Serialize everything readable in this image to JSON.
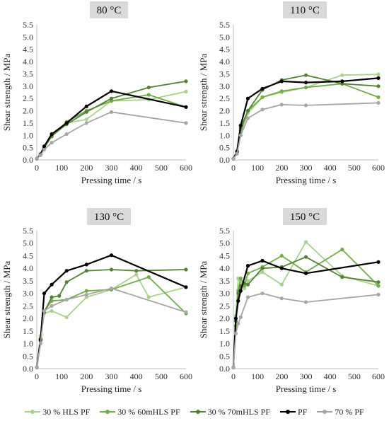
{
  "chart_data": [
    {
      "type": "line",
      "title": "80 °C",
      "xlabel": "Pressing time / s",
      "ylabel": "Shear strength / MPa",
      "xlim": [
        0,
        600
      ],
      "ylim": [
        0,
        5.5
      ],
      "xticks": [
        "0",
        "100",
        "200",
        "300",
        "400",
        "500",
        "600"
      ],
      "yticks": [
        "0.0",
        "0.5",
        "1.0",
        "1.5",
        "2.0",
        "2.5",
        "3.0",
        "3.5",
        "4.0",
        "4.5",
        "5.0",
        "5.5"
      ],
      "series": [
        {
          "name": "30 % HLS PF",
          "x": [
            0,
            15,
            30,
            60,
            120,
            200,
            300,
            450,
            600
          ],
          "y": [
            0.05,
            0.2,
            0.5,
            0.95,
            1.5,
            1.65,
            2.4,
            2.45,
            2.78
          ]
        },
        {
          "name": "30 % 60mHLS PF",
          "x": [
            0,
            15,
            30,
            60,
            120,
            200,
            300,
            450,
            600
          ],
          "y": [
            0.05,
            0.25,
            0.55,
            0.95,
            1.55,
            2.0,
            2.4,
            2.65,
            2.15
          ]
        },
        {
          "name": "30 % 70mHLS PF",
          "x": [
            0,
            15,
            30,
            60,
            120,
            200,
            300,
            450,
            600
          ],
          "y": [
            0.05,
            0.2,
            0.5,
            0.98,
            1.45,
            1.95,
            2.5,
            2.95,
            3.2
          ]
        },
        {
          "name": "PF",
          "x": [
            0,
            15,
            30,
            60,
            120,
            200,
            300,
            600
          ],
          "y": [
            0.05,
            0.22,
            0.55,
            1.05,
            1.5,
            2.18,
            2.8,
            2.15
          ]
        },
        {
          "name": "70 % PF",
          "x": [
            0,
            15,
            30,
            60,
            120,
            200,
            300,
            600
          ],
          "y": [
            0.05,
            0.2,
            0.42,
            0.7,
            1.05,
            1.5,
            1.95,
            1.5
          ]
        }
      ]
    },
    {
      "type": "line",
      "title": "110 °C",
      "xlabel": "Pressing time / s",
      "ylabel": "Shear strength / MPa",
      "xlim": [
        0,
        600
      ],
      "ylim": [
        0,
        5.5
      ],
      "xticks": [
        "0",
        "100",
        "200",
        "300",
        "400",
        "500",
        "600"
      ],
      "yticks": [
        "0.0",
        "0.5",
        "1.0",
        "1.5",
        "2.0",
        "2.5",
        "3.0",
        "3.5",
        "4.0",
        "4.5",
        "5.0",
        "5.5"
      ],
      "series": [
        {
          "name": "30 % HLS PF",
          "x": [
            0,
            15,
            30,
            60,
            120,
            200,
            300,
            450,
            600
          ],
          "y": [
            0.05,
            0.25,
            1.1,
            1.9,
            2.55,
            2.75,
            2.95,
            3.45,
            3.48
          ]
        },
        {
          "name": "30 % 60mHLS PF",
          "x": [
            0,
            15,
            30,
            60,
            120,
            200,
            300,
            450,
            600
          ],
          "y": [
            0.05,
            0.3,
            1.2,
            2.0,
            2.55,
            2.8,
            2.95,
            3.1,
            2.55
          ]
        },
        {
          "name": "30 % 70mHLS PF",
          "x": [
            0,
            15,
            30,
            60,
            120,
            200,
            300,
            450,
            600
          ],
          "y": [
            0.05,
            0.3,
            1.3,
            2.0,
            2.85,
            3.25,
            3.45,
            3.1,
            3.0
          ]
        },
        {
          "name": "PF",
          "x": [
            0,
            15,
            30,
            60,
            120,
            200,
            300,
            450,
            600
          ],
          "y": [
            0.05,
            0.35,
            1.4,
            2.5,
            2.9,
            3.2,
            3.15,
            3.2,
            3.33
          ]
        },
        {
          "name": "70 % PF",
          "x": [
            0,
            15,
            30,
            60,
            120,
            200,
            300,
            600
          ],
          "y": [
            0.05,
            0.25,
            1.0,
            1.7,
            2.05,
            2.25,
            2.22,
            2.32
          ]
        }
      ]
    },
    {
      "type": "line",
      "title": "130 °C",
      "xlabel": "Pressing time / s",
      "ylabel": "Shear strength / MPa",
      "xlim": [
        0,
        600
      ],
      "ylim": [
        0,
        5.5
      ],
      "xticks": [
        "0",
        "100",
        "200",
        "300",
        "400",
        "500",
        "600"
      ],
      "yticks": [
        "0.0",
        "0.5",
        "1.0",
        "1.5",
        "2.0",
        "2.5",
        "3.0",
        "3.5",
        "4.0",
        "4.5",
        "5.0",
        "5.5"
      ],
      "series": [
        {
          "name": "30 % HLS PF",
          "x": [
            0,
            15,
            30,
            60,
            120,
            200,
            300,
            400,
            450,
            600
          ],
          "y": [
            0.05,
            1.3,
            2.2,
            2.3,
            2.05,
            2.85,
            3.15,
            3.75,
            2.85,
            3.25
          ]
        },
        {
          "name": "30 % 60mHLS PF",
          "x": [
            0,
            15,
            30,
            60,
            120,
            200,
            300,
            450,
            600
          ],
          "y": [
            0.05,
            1.1,
            2.3,
            2.7,
            2.75,
            3.1,
            3.15,
            3.65,
            2.2
          ]
        },
        {
          "name": "30 % 70mHLS PF",
          "x": [
            0,
            15,
            30,
            60,
            90,
            120,
            200,
            300,
            400,
            600
          ],
          "y": [
            0.05,
            1.2,
            2.25,
            2.85,
            2.9,
            3.45,
            3.9,
            3.95,
            3.9,
            3.95
          ]
        },
        {
          "name": "PF",
          "x": [
            0,
            15,
            30,
            60,
            120,
            200,
            300,
            600
          ],
          "y": [
            0.05,
            1.15,
            3.0,
            3.35,
            3.9,
            4.15,
            4.52,
            3.25
          ]
        },
        {
          "name": "70 % PF",
          "x": [
            0,
            15,
            30,
            60,
            120,
            200,
            300,
            600
          ],
          "y": [
            0.05,
            1.0,
            2.3,
            2.5,
            2.75,
            2.95,
            3.2,
            2.25
          ]
        }
      ]
    },
    {
      "type": "line",
      "title": "150 °C",
      "xlabel": "Pressing time / s",
      "ylabel": "Shear strength / MPa",
      "xlim": [
        0,
        600
      ],
      "ylim": [
        0,
        5.5
      ],
      "xticks": [
        "0",
        "100",
        "200",
        "300",
        "400",
        "500",
        "600"
      ],
      "yticks": [
        "0.0",
        "0.5",
        "1.0",
        "1.5",
        "2.0",
        "2.5",
        "3.0",
        "3.5",
        "4.0",
        "4.5",
        "5.0",
        "5.5"
      ],
      "series": [
        {
          "name": "30 % HLS PF",
          "x": [
            0,
            10,
            20,
            30,
            45,
            60,
            120,
            200,
            300,
            450,
            600
          ],
          "y": [
            0.05,
            2.1,
            3.6,
            3.4,
            3.2,
            3.5,
            3.85,
            3.35,
            5.05,
            3.7,
            3.3
          ]
        },
        {
          "name": "30 % 60mHLS PF",
          "x": [
            0,
            10,
            20,
            30,
            45,
            60,
            120,
            200,
            300,
            450,
            600
          ],
          "y": [
            0.05,
            1.7,
            3.1,
            3.6,
            3.3,
            3.8,
            4.05,
            4.5,
            3.85,
            4.75,
            3.3
          ]
        },
        {
          "name": "30 % 70mHLS PF",
          "x": [
            0,
            10,
            20,
            30,
            45,
            60,
            120,
            200,
            300,
            450,
            600
          ],
          "y": [
            0.05,
            1.9,
            3.0,
            3.3,
            3.4,
            3.35,
            4.0,
            4.05,
            4.45,
            3.65,
            3.45
          ]
        },
        {
          "name": "PF",
          "x": [
            0,
            10,
            20,
            30,
            60,
            120,
            200,
            300,
            600
          ],
          "y": [
            0.05,
            2.0,
            2.7,
            3.1,
            4.1,
            4.3,
            4.0,
            3.8,
            4.25
          ]
        },
        {
          "name": "70 % PF",
          "x": [
            0,
            10,
            20,
            30,
            60,
            120,
            200,
            300,
            600
          ],
          "y": [
            0.05,
            1.4,
            1.8,
            2.05,
            2.85,
            3.0,
            2.8,
            2.65,
            2.95
          ]
        }
      ]
    }
  ],
  "legend": [
    {
      "label": "30 % HLS PF",
      "color": "#a9d18e"
    },
    {
      "label": "30 % 60mHLS PF",
      "color": "#70ad47"
    },
    {
      "label": "30 % 70mHLS PF",
      "color": "#548235"
    },
    {
      "label": "PF",
      "color": "#000000"
    },
    {
      "label": "70 % PF",
      "color": "#a6a6a6"
    }
  ],
  "title_badge_color": "#d9d9d9",
  "grid": false
}
